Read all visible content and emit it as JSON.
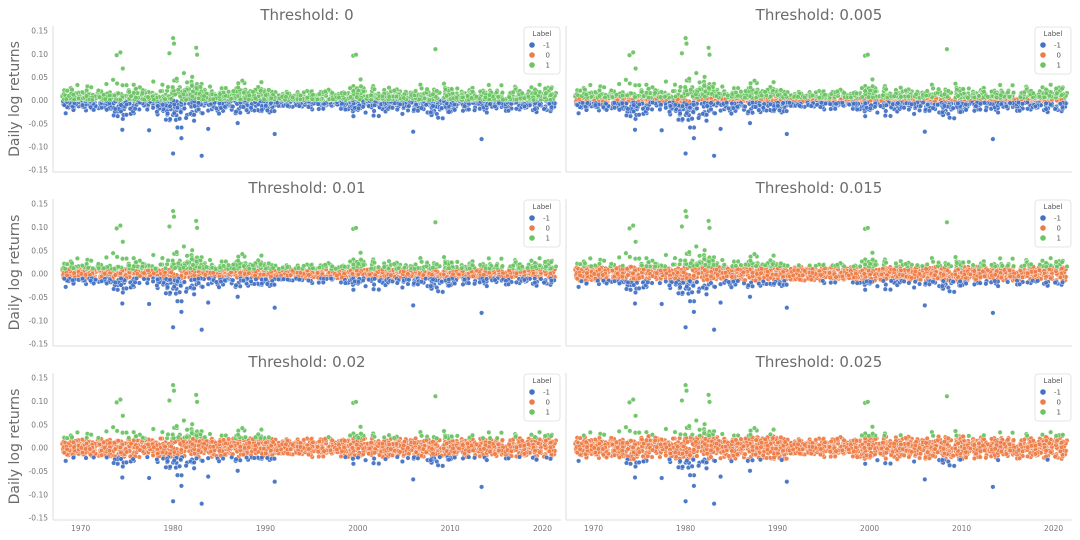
{
  "figure": {
    "ylabel": "Daily log returns",
    "legend_title": "Label",
    "legend_labels": [
      "-1",
      "0",
      "1"
    ],
    "colors": {
      "-1": "#4472c4",
      "0": "#ed7d48",
      "1": "#6cc463"
    }
  },
  "chart_data": [
    {
      "type": "scatter",
      "title": "Threshold: 0",
      "threshold": 0,
      "xlim": [
        1967,
        2022
      ],
      "ylim": [
        -0.155,
        0.16
      ],
      "xticks": [
        1970,
        1980,
        1990,
        2000,
        2010,
        2020
      ],
      "xticklabels": [
        "1970",
        "1980",
        "1990",
        "2000",
        "2010",
        "2020"
      ],
      "yticks": [
        -0.15,
        -0.1,
        -0.05,
        0.0,
        0.05,
        0.1,
        0.15
      ],
      "yticklabels": [
        "-0.15",
        "-0.10",
        "-0.05",
        "0.00",
        "0.05",
        "0.10",
        "0.15"
      ],
      "legend": "top-right",
      "grid": false
    },
    {
      "type": "scatter",
      "title": "Threshold: 0.005",
      "threshold": 0.005,
      "xlim": [
        1967,
        2022
      ],
      "ylim": [
        -0.155,
        0.16
      ],
      "xticks": [
        1970,
        1980,
        1990,
        2000,
        2010,
        2020
      ],
      "xticklabels": [
        "1970",
        "1980",
        "1990",
        "2000",
        "2010",
        "2020"
      ],
      "yticks": [
        -0.15,
        -0.1,
        -0.05,
        0.0,
        0.05,
        0.1,
        0.15
      ],
      "yticklabels": [
        "-0.15",
        "-0.10",
        "-0.05",
        "0.00",
        "0.05",
        "0.10",
        "0.15"
      ],
      "legend": "top-right",
      "grid": false
    },
    {
      "type": "scatter",
      "title": "Threshold: 0.01",
      "threshold": 0.01,
      "xlim": [
        1967,
        2022
      ],
      "ylim": [
        -0.155,
        0.16
      ],
      "xticks": [
        1970,
        1980,
        1990,
        2000,
        2010,
        2020
      ],
      "xticklabels": [
        "1970",
        "1980",
        "1990",
        "2000",
        "2010",
        "2020"
      ],
      "yticks": [
        -0.15,
        -0.1,
        -0.05,
        0.0,
        0.05,
        0.1,
        0.15
      ],
      "yticklabels": [
        "-0.15",
        "-0.10",
        "-0.05",
        "0.00",
        "0.05",
        "0.10",
        "0.15"
      ],
      "legend": "top-right",
      "grid": false
    },
    {
      "type": "scatter",
      "title": "Threshold: 0.015",
      "threshold": 0.015,
      "xlim": [
        1967,
        2022
      ],
      "ylim": [
        -0.155,
        0.16
      ],
      "xticks": [
        1970,
        1980,
        1990,
        2000,
        2010,
        2020
      ],
      "xticklabels": [
        "1970",
        "1980",
        "1990",
        "2000",
        "2010",
        "2020"
      ],
      "yticks": [
        -0.15,
        -0.1,
        -0.05,
        0.0,
        0.05,
        0.1,
        0.15
      ],
      "yticklabels": [
        "-0.15",
        "-0.10",
        "-0.05",
        "0.00",
        "0.05",
        "0.10",
        "0.15"
      ],
      "legend": "top-right",
      "grid": false
    },
    {
      "type": "scatter",
      "title": "Threshold: 0.02",
      "threshold": 0.02,
      "xlim": [
        1967,
        2022
      ],
      "ylim": [
        -0.155,
        0.16
      ],
      "xticks": [
        1970,
        1980,
        1990,
        2000,
        2010,
        2020
      ],
      "xticklabels": [
        "1970",
        "1980",
        "1990",
        "2000",
        "2010",
        "2020"
      ],
      "yticks": [
        -0.15,
        -0.1,
        -0.05,
        0.0,
        0.05,
        0.1,
        0.15
      ],
      "yticklabels": [
        "-0.15",
        "-0.10",
        "-0.05",
        "0.00",
        "0.05",
        "0.10",
        "0.15"
      ],
      "legend": "top-right",
      "grid": false
    },
    {
      "type": "scatter",
      "title": "Threshold: 0.025",
      "threshold": 0.025,
      "xlim": [
        1967,
        2022
      ],
      "ylim": [
        -0.155,
        0.16
      ],
      "xticks": [
        1970,
        1980,
        1990,
        2000,
        2010,
        2020
      ],
      "xticklabels": [
        "1970",
        "1980",
        "1990",
        "2000",
        "2010",
        "2020"
      ],
      "yticks": [
        -0.15,
        -0.1,
        -0.05,
        0.0,
        0.05,
        0.1,
        0.15
      ],
      "yticklabels": [
        "-0.15",
        "-0.10",
        "-0.05",
        "0.00",
        "0.05",
        "0.10",
        "0.15"
      ],
      "legend": "top-right",
      "grid": false
    }
  ]
}
